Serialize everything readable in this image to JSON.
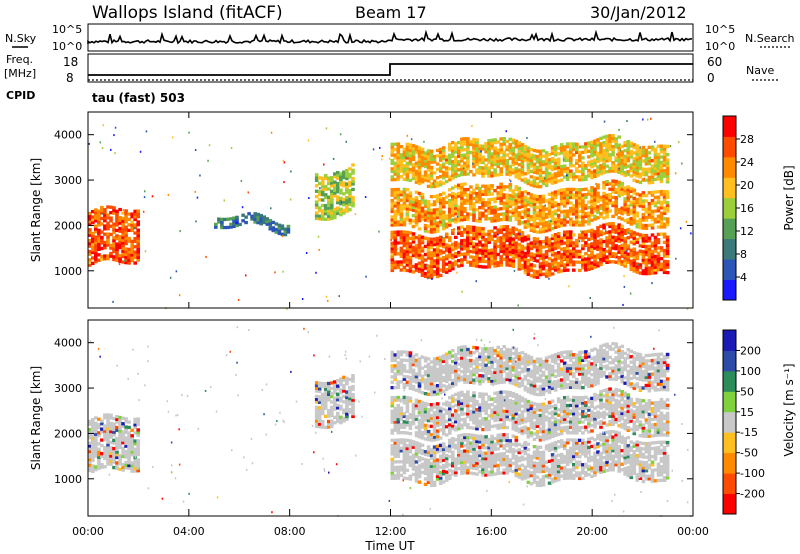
{
  "header": {
    "station": "Wallops Island (fitACF)",
    "beam": "Beam 17",
    "date": "30/Jan/2012"
  },
  "noise_panel": {
    "left_label": "N.Sky",
    "right_label": "N.Search",
    "left_ticks": [
      "10^5",
      "10^0"
    ],
    "right_ticks": [
      "10^5",
      "10^0"
    ]
  },
  "freq_panel": {
    "left_label_1": "Freq.",
    "left_label_2": "[MHz]",
    "right_label": "Nave",
    "left_ticks": [
      "18",
      "8"
    ],
    "right_ticks": [
      "60",
      "0"
    ],
    "cpid_label": "CPID",
    "cpid_value": "tau (fast) 503"
  },
  "colors": {
    "power_scale": [
      "#1a1aff",
      "#2c55b8",
      "#3a7a7a",
      "#55a055",
      "#9bcf3c",
      "#ffbf1f",
      "#ff8a00",
      "#ff4b00",
      "#ff0000"
    ],
    "velocity_scale": [
      "#ff0000",
      "#ff4b00",
      "#ff8a00",
      "#ffbf1f",
      "#c8c8c8",
      "#7fd23c",
      "#2c8c5a",
      "#2c4ca8",
      "#1a1ab4"
    ]
  },
  "chart_data": [
    {
      "type": "heatmap",
      "name": "power",
      "ylabel": "Slant Range [km]",
      "ylim": [
        180,
        4500
      ],
      "y_ticks": [
        "4000",
        "3000",
        "2000",
        "1000"
      ],
      "colorbar_label": "Power [dB]",
      "colorbar_ticks": [
        "28",
        "24",
        "20",
        "16",
        "12",
        "8",
        "4"
      ],
      "colorbar_range": [
        0,
        32
      ],
      "bands": [
        {
          "t": [
            0,
            2
          ],
          "range": [
            1100,
            2300
          ],
          "value": 26
        },
        {
          "t": [
            9,
            10.5
          ],
          "range": [
            2200,
            3200
          ],
          "value": 16
        },
        {
          "t": [
            12,
            23
          ],
          "range": [
            1000,
            1900
          ],
          "value": 26
        },
        {
          "t": [
            12,
            23
          ],
          "range": [
            2000,
            2800
          ],
          "value": 22
        },
        {
          "t": [
            12,
            23
          ],
          "range": [
            3000,
            3800
          ],
          "value": 20
        },
        {
          "t": [
            5,
            8
          ],
          "range": [
            1900,
            2100
          ],
          "value": 8
        }
      ]
    },
    {
      "type": "heatmap",
      "name": "velocity",
      "xlabel": "Time UT",
      "ylabel": "Slant Range [km]",
      "ylim": [
        180,
        4500
      ],
      "y_ticks": [
        "4000",
        "3000",
        "2000",
        "1000"
      ],
      "x_ticks": [
        "00:00",
        "04:00",
        "08:00",
        "12:00",
        "16:00",
        "20:00",
        "00:00"
      ],
      "colorbar_label": "Velocity [m s⁻¹]",
      "colorbar_ticks": [
        "200",
        "100",
        "50",
        "15",
        "-15",
        "-50",
        "-100",
        "-200"
      ],
      "bands": [
        {
          "t": [
            0,
            2
          ],
          "range": [
            1100,
            2300
          ],
          "value": 0
        },
        {
          "t": [
            9,
            10.5
          ],
          "range": [
            2200,
            3200
          ],
          "value": 0
        },
        {
          "t": [
            12,
            23
          ],
          "range": [
            1000,
            1900
          ],
          "value": 0
        },
        {
          "t": [
            12,
            23
          ],
          "range": [
            2000,
            2800
          ],
          "value": 0
        },
        {
          "t": [
            12,
            23
          ],
          "range": [
            3000,
            3800
          ],
          "value": 0
        }
      ]
    }
  ]
}
